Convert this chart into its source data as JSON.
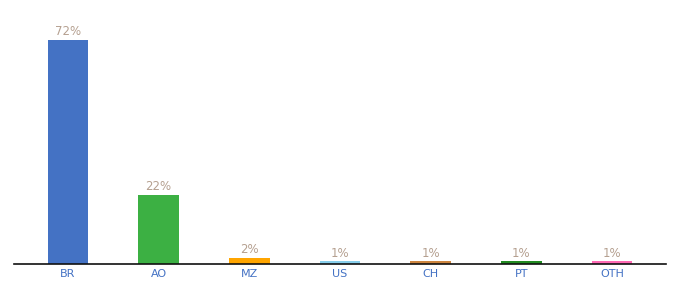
{
  "categories": [
    "BR",
    "AO",
    "MZ",
    "US",
    "CH",
    "PT",
    "OTH"
  ],
  "values": [
    72,
    22,
    2,
    1,
    1,
    1,
    1
  ],
  "bar_colors": [
    "#4472C4",
    "#3CB043",
    "#FFA500",
    "#87CEEB",
    "#CD853F",
    "#228B22",
    "#FF69B4"
  ],
  "labels": [
    "72%",
    "22%",
    "2%",
    "1%",
    "1%",
    "1%",
    "1%"
  ],
  "background_color": "#ffffff",
  "ylim": [
    0,
    78
  ],
  "label_fontsize": 8.5,
  "tick_fontsize": 8,
  "label_color": "#b5a090",
  "tick_color": "#4472C4",
  "bar_width": 0.45,
  "figsize": [
    6.8,
    3.0
  ],
  "dpi": 100
}
